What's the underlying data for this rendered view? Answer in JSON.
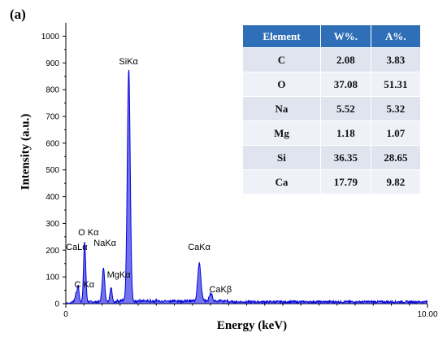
{
  "panel_label": "(a)",
  "colors": {
    "spectrum": "#0000dd",
    "table_header": "#2f6fb7"
  },
  "chart_data": {
    "type": "line",
    "xlabel": "Energy (keV)",
    "ylabel": "Intensity (a.u.)",
    "xlim": [
      0,
      10
    ],
    "ylim": [
      0,
      1050
    ],
    "x_ticks": [
      0,
      10
    ],
    "x_tick_labels": [
      "0",
      "10.00"
    ],
    "y_ticks": [
      0,
      100,
      200,
      300,
      400,
      500,
      600,
      700,
      800,
      900,
      1000
    ],
    "grid": false,
    "peaks": [
      {
        "label": "C Kα",
        "energy": 0.28,
        "intensity": 30
      },
      {
        "label": "O Kα",
        "energy": 0.52,
        "intensity": 225
      },
      {
        "label": "CaLα",
        "energy": 0.34,
        "intensity": 60
      },
      {
        "label": "NaKα",
        "energy": 1.04,
        "intensity": 125
      },
      {
        "label": "MgKα",
        "energy": 1.25,
        "intensity": 55
      },
      {
        "label": "SiKα",
        "energy": 1.74,
        "intensity": 870
      },
      {
        "label": "CaKα",
        "energy": 3.69,
        "intensity": 140
      },
      {
        "label": "CaKβ",
        "energy": 4.01,
        "intensity": 30
      }
    ],
    "table": {
      "headers": [
        "Element",
        "W%.",
        "A%."
      ],
      "rows": [
        [
          "C",
          "2.08",
          "3.83"
        ],
        [
          "O",
          "37.08",
          "51.31"
        ],
        [
          "Na",
          "5.52",
          "5.32"
        ],
        [
          "Mg",
          "1.18",
          "1.07"
        ],
        [
          "Si",
          "36.35",
          "28.65"
        ],
        [
          "Ca",
          "17.79",
          "9.82"
        ]
      ]
    }
  }
}
